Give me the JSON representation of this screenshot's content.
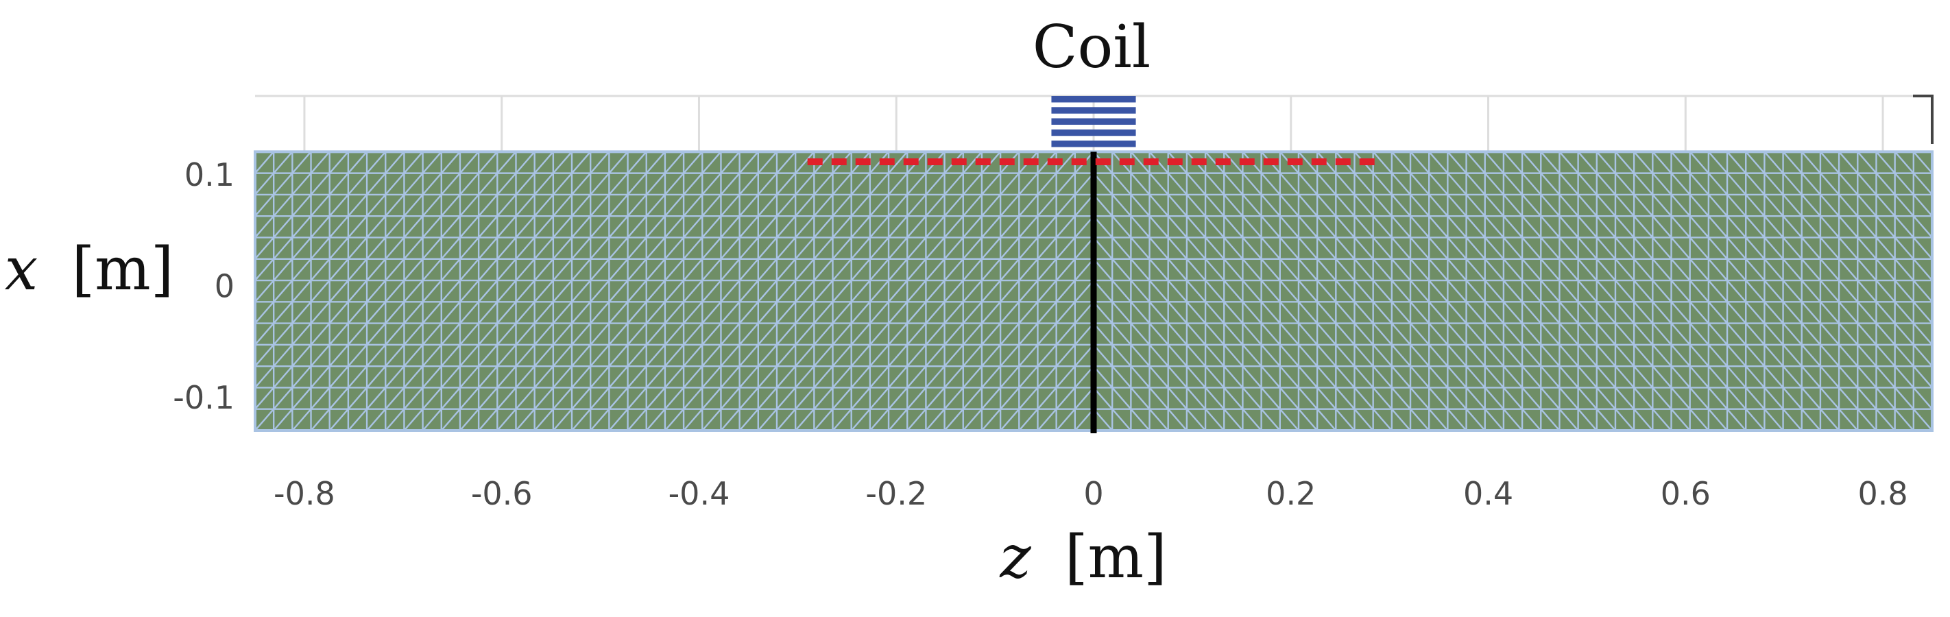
{
  "chart_data": {
    "type": "mesh",
    "xlabel": {
      "var": "z",
      "unit": "[m]"
    },
    "ylabel": {
      "var": "x",
      "unit": "[m]"
    },
    "xlim": [
      -0.85,
      0.85
    ],
    "ylim": [
      -0.13,
      0.17
    ],
    "xticks": [
      -0.8,
      -0.6,
      -0.4,
      -0.2,
      0,
      0.2,
      0.4,
      0.6,
      0.8
    ],
    "yticks": [
      0.1,
      0,
      -0.1
    ],
    "xticklabels": [
      "-0.8",
      "-0.6",
      "-0.4",
      "-0.2",
      "0",
      "0.2",
      "0.4",
      "0.6",
      "0.8"
    ],
    "yticklabels": [
      "0.1",
      "0",
      "-0.1"
    ],
    "plate": {
      "z_min": -0.85,
      "z_max": 0.85,
      "x_min": -0.13,
      "x_max": 0.12,
      "nz": 90,
      "nx": 13,
      "color": "#6f8e66",
      "mesh_color": "#a9c3e3"
    },
    "symmetry_line": {
      "z": 0.0,
      "x_range": [
        -0.13,
        0.12
      ],
      "color": "#000000"
    },
    "dashed_line": {
      "z_range": [
        -0.29,
        0.29
      ],
      "x": 0.111,
      "color": "#e0202a"
    },
    "coil": {
      "z_range": [
        -0.04,
        0.04
      ],
      "x_range": [
        0.12,
        0.17
      ],
      "turns": 5,
      "color": "#3a55a5",
      "label": "Coil"
    }
  }
}
